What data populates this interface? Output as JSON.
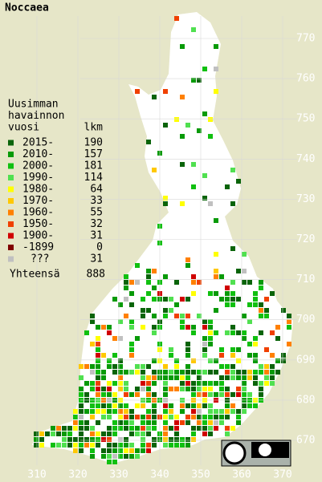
{
  "title": "Noccaea",
  "legend": {
    "heading": [
      "Uusimman",
      "havainnon",
      "vuosi"
    ],
    "count_header": "lkm",
    "items": [
      {
        "label": "2015-",
        "count": 190,
        "color": "#0a640a"
      },
      {
        "label": "2010-",
        "count": 157,
        "color": "#089a08"
      },
      {
        "label": "2000-",
        "count": 181,
        "color": "#10c010"
      },
      {
        "label": "1990-",
        "count": 114,
        "color": "#50e050"
      },
      {
        "label": "1980-",
        "count": 64,
        "color": "#ffff00"
      },
      {
        "label": "1970-",
        "count": 33,
        "color": "#ffc800"
      },
      {
        "label": "1960-",
        "count": 55,
        "color": "#ff8000"
      },
      {
        "label": "1950-",
        "count": 32,
        "color": "#f04000"
      },
      {
        "label": "1900-",
        "count": 31,
        "color": "#d00000"
      },
      {
        "label": "-1899",
        "count": 0,
        "color": "#800000"
      },
      {
        "label": "???",
        "count": 31,
        "color": "#c0c0c0"
      }
    ],
    "total_label": "Yhteensä",
    "total": 888
  },
  "y_labels": [
    770,
    760,
    750,
    740,
    730,
    720,
    710,
    700,
    690,
    680,
    670
  ],
  "x_labels": [
    310,
    320,
    330,
    340,
    350,
    360,
    370
  ]
}
